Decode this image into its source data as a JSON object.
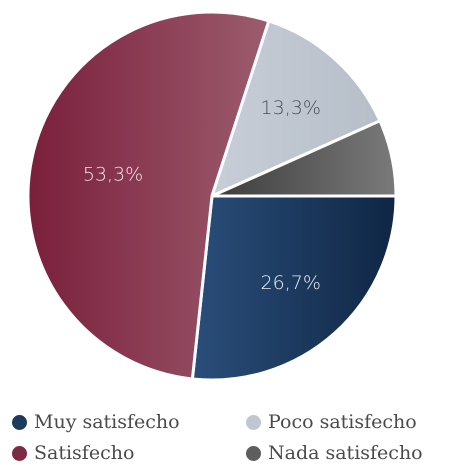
{
  "chart_data": {
    "type": "pie",
    "title": "",
    "slices": [
      {
        "name": "Muy satisfecho",
        "value": 26.7,
        "label": "26,7%",
        "color": "#1d3a60",
        "label_color": "#e8edf4"
      },
      {
        "name": "Satisfecho",
        "value": 53.3,
        "label": "53,3%",
        "color": "#7b2c44",
        "label_color": "#f3e6ea"
      },
      {
        "name": "Poco satisfecho",
        "value": 13.3,
        "label": "13,3%",
        "color": "#c0c7d1",
        "label_color": "#4a4f57"
      },
      {
        "name": "Nada satisfecho",
        "value": 6.7,
        "label": "",
        "color": "#5e5e5e",
        "label_color": "#ffffff"
      }
    ],
    "legend": {
      "placement": "bottom",
      "entries": [
        "Muy satisfecho",
        "Poco satisfecho",
        "Satisfecho",
        "Nada satisfecho"
      ]
    }
  }
}
